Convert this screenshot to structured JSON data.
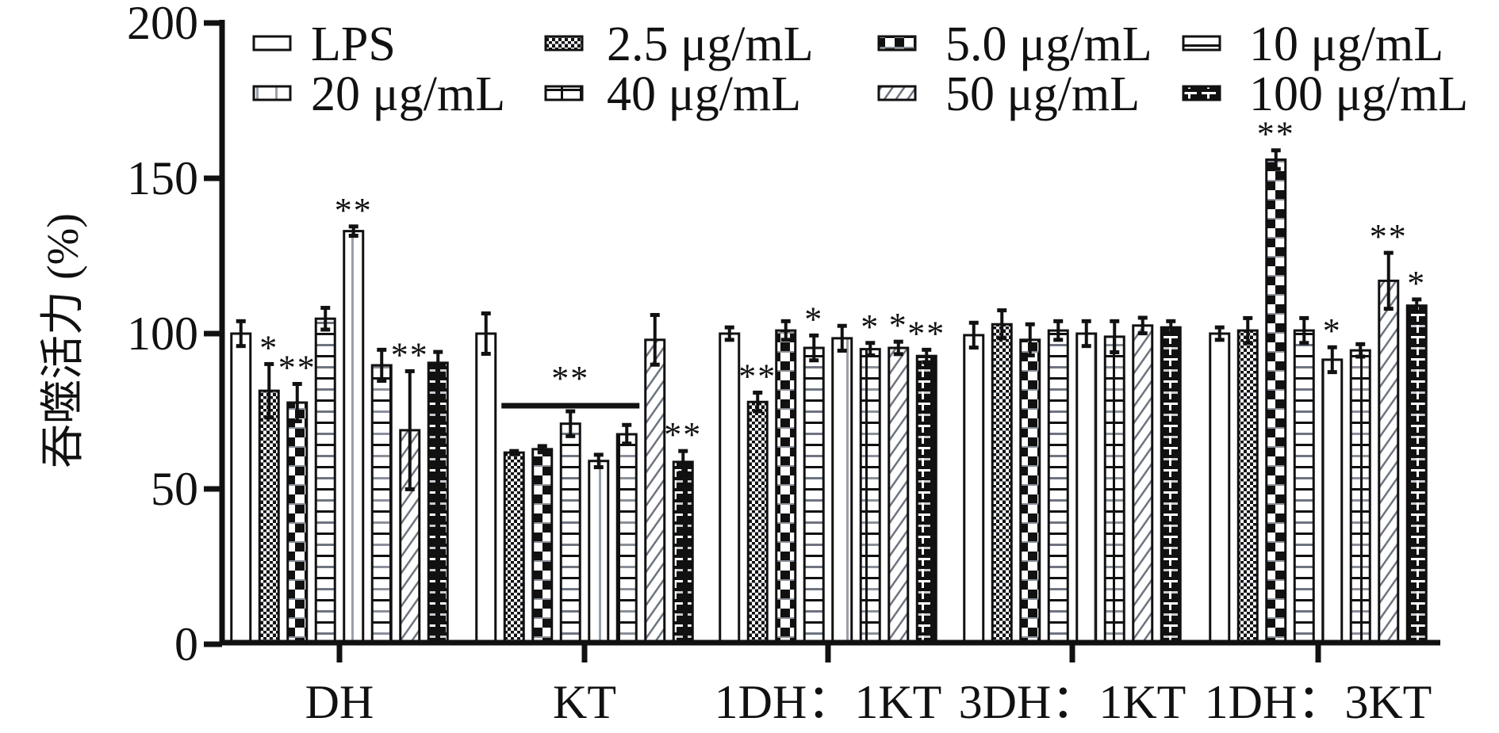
{
  "chart_data": {
    "type": "bar",
    "title": "",
    "xlabel": "",
    "ylabel": "吞噬活力 (%)",
    "ylim": [
      0,
      200
    ],
    "yticks": [
      0,
      50,
      100,
      150,
      200
    ],
    "grid": false,
    "legend_position": "top",
    "categories": [
      "DH",
      "KT",
      "1DH：1KT",
      "3DH：1KT",
      "1DH：3KT"
    ],
    "series": [
      {
        "name": "LPS",
        "pattern": "plain",
        "values": [
          100,
          100,
          100,
          99.5,
          100
        ],
        "errors": [
          4,
          6.5,
          2,
          4,
          2
        ],
        "significance": [
          "",
          "",
          "",
          "",
          ""
        ]
      },
      {
        "name": "2.5 μg/mL",
        "pattern": "fine-checker",
        "values": [
          81.6,
          61.7,
          78,
          103,
          101
        ],
        "errors": [
          8.6,
          0.5,
          3,
          4.5,
          4
        ],
        "significance": [
          "*",
          "",
          "**",
          "",
          ""
        ]
      },
      {
        "name": "5.0 μg/mL",
        "pattern": "checker",
        "values": [
          77.8,
          62.8,
          101,
          98,
          156
        ],
        "errors": [
          6,
          1,
          3,
          5,
          3
        ],
        "significance": [
          "**",
          "",
          "",
          "",
          "**"
        ]
      },
      {
        "name": "10 μg/mL",
        "pattern": "horizontal-stripes",
        "values": [
          104.8,
          71,
          95.4,
          101,
          101
        ],
        "errors": [
          3.5,
          4,
          4,
          3,
          4
        ],
        "significance": [
          "",
          "",
          "*",
          "",
          ""
        ]
      },
      {
        "name": "20 μg/mL",
        "pattern": "vertical-line",
        "values": [
          133,
          59,
          98.5,
          100,
          91.6
        ],
        "errors": [
          1.5,
          2,
          4,
          4,
          4
        ],
        "significance": [
          "**",
          "",
          "",
          "",
          "*"
        ]
      },
      {
        "name": "40 μg/mL",
        "pattern": "grid",
        "values": [
          89.8,
          67.6,
          95,
          99,
          94.6
        ],
        "errors": [
          5,
          3,
          2,
          5,
          2
        ],
        "significance": [
          "",
          "",
          "*",
          "",
          ""
        ]
      },
      {
        "name": "50 μg/mL",
        "pattern": "diagonal-hatch",
        "values": [
          68.9,
          98,
          95.4,
          102.6,
          117
        ],
        "errors": [
          19,
          8,
          2,
          2.5,
          9
        ],
        "significance": [
          "**",
          "",
          "*",
          "",
          "**"
        ]
      },
      {
        "name": "100 μg/mL",
        "pattern": "brick",
        "values": [
          90.6,
          58.7,
          92.8,
          102,
          109
        ],
        "errors": [
          3.5,
          3.5,
          2,
          2,
          2
        ],
        "significance": [
          "",
          "**",
          "**",
          "",
          "*"
        ]
      }
    ],
    "annotations": [
      {
        "type": "bracket",
        "category": "KT",
        "from_series": "2.5 μg/mL",
        "to_series": "40 μg/mL",
        "label": "**"
      }
    ],
    "colors": {
      "ink": "#111111",
      "gray": "#8a8f99",
      "light": "#c9ccd1",
      "background": "#ffffff"
    }
  }
}
